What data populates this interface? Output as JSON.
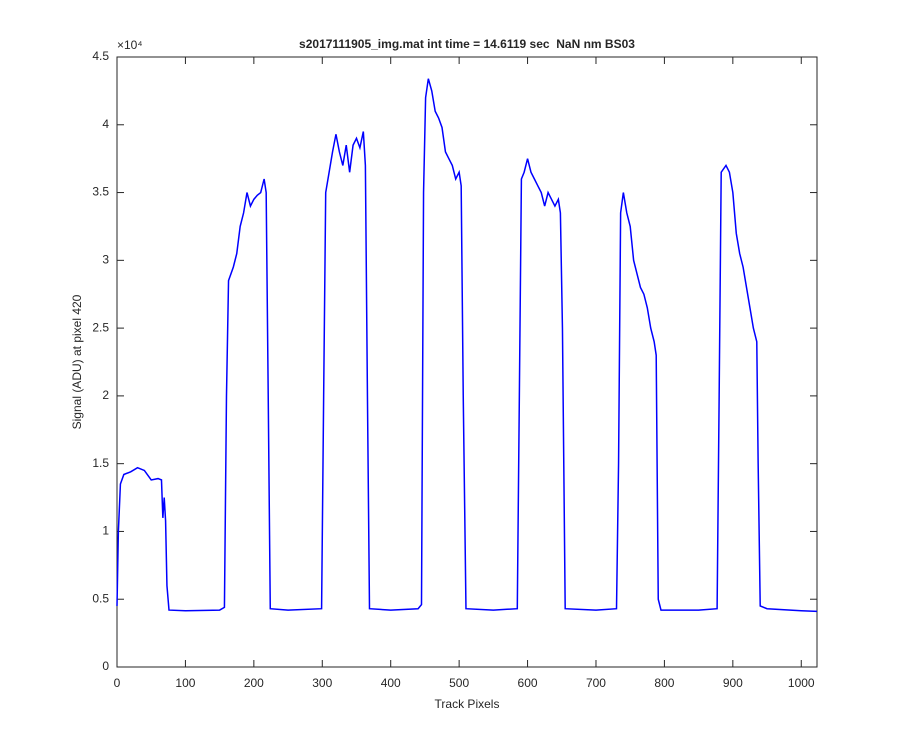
{
  "chart_data": {
    "type": "line",
    "title": "s2017111905_img.mat int time = 14.6119 sec  NaN nm BS03",
    "xlabel": "Track Pixels",
    "ylabel": "Signal (ADU) at pixel 420",
    "y_exponent_label": "×10⁴",
    "xlim": [
      0,
      1023
    ],
    "ylim": [
      0,
      45000
    ],
    "xticks": [
      0,
      100,
      200,
      300,
      400,
      500,
      600,
      700,
      800,
      900,
      1000
    ],
    "yticks": [
      0,
      {
        "value": 5000,
        "label": "0.5"
      },
      {
        "value": 10000,
        "label": "1"
      },
      {
        "value": 15000,
        "label": "1.5"
      },
      {
        "value": 20000,
        "label": "2"
      },
      {
        "value": 25000,
        "label": "2.5"
      },
      {
        "value": 30000,
        "label": "3"
      },
      {
        "value": 35000,
        "label": "3.5"
      },
      {
        "value": 40000,
        "label": "4"
      },
      {
        "value": 45000,
        "label": "4.5"
      }
    ],
    "x": [
      0,
      2,
      5,
      10,
      20,
      30,
      40,
      50,
      60,
      65,
      67,
      69,
      71,
      73,
      76,
      100,
      150,
      157,
      160,
      163,
      170,
      175,
      180,
      185,
      190,
      195,
      200,
      205,
      210,
      215,
      218,
      221,
      224,
      250,
      299,
      302,
      305,
      310,
      315,
      320,
      325,
      330,
      335,
      340,
      345,
      350,
      355,
      360,
      363,
      366,
      369,
      400,
      440,
      445,
      448,
      451,
      455,
      460,
      465,
      470,
      475,
      480,
      485,
      490,
      495,
      500,
      503,
      506,
      510,
      550,
      585,
      588,
      591,
      595,
      600,
      605,
      610,
      615,
      620,
      625,
      630,
      635,
      640,
      645,
      648,
      651,
      655,
      700,
      730,
      733,
      736,
      740,
      745,
      750,
      755,
      760,
      765,
      770,
      775,
      780,
      785,
      788,
      791,
      795,
      850,
      877,
      880,
      883,
      890,
      895,
      900,
      905,
      910,
      915,
      920,
      925,
      930,
      935,
      937,
      940,
      950,
      1000,
      1023
    ],
    "series": [
      {
        "name": "signal",
        "color": "#0000ff",
        "values": [
          4500,
          10000,
          13500,
          14200,
          14400,
          14700,
          14500,
          13800,
          13900,
          13800,
          11000,
          12500,
          10800,
          6000,
          4200,
          4150,
          4200,
          4400,
          20000,
          28500,
          29500,
          30500,
          32500,
          33500,
          35000,
          34000,
          34500,
          34800,
          35000,
          36000,
          35000,
          20000,
          4300,
          4200,
          4300,
          20000,
          35000,
          36500,
          38000,
          39300,
          38000,
          37000,
          38500,
          36500,
          38500,
          39000,
          38300,
          39500,
          37000,
          20000,
          4300,
          4200,
          4300,
          4600,
          35000,
          42000,
          43400,
          42500,
          41000,
          40500,
          39800,
          38000,
          37500,
          37000,
          36000,
          36500,
          35500,
          20000,
          4300,
          4200,
          4300,
          20000,
          36000,
          36500,
          37500,
          36500,
          36000,
          35500,
          35000,
          34000,
          35000,
          34500,
          34000,
          34500,
          33500,
          25000,
          4300,
          4200,
          4300,
          15000,
          33500,
          35000,
          33500,
          32500,
          30000,
          29000,
          28000,
          27500,
          26500,
          25000,
          24000,
          23000,
          5000,
          4200,
          4200,
          4300,
          20000,
          36500,
          37000,
          36500,
          35000,
          32000,
          30500,
          29500,
          28000,
          26500,
          25000,
          24000,
          15000,
          4500,
          4300,
          4150,
          4100
        ]
      }
    ]
  }
}
